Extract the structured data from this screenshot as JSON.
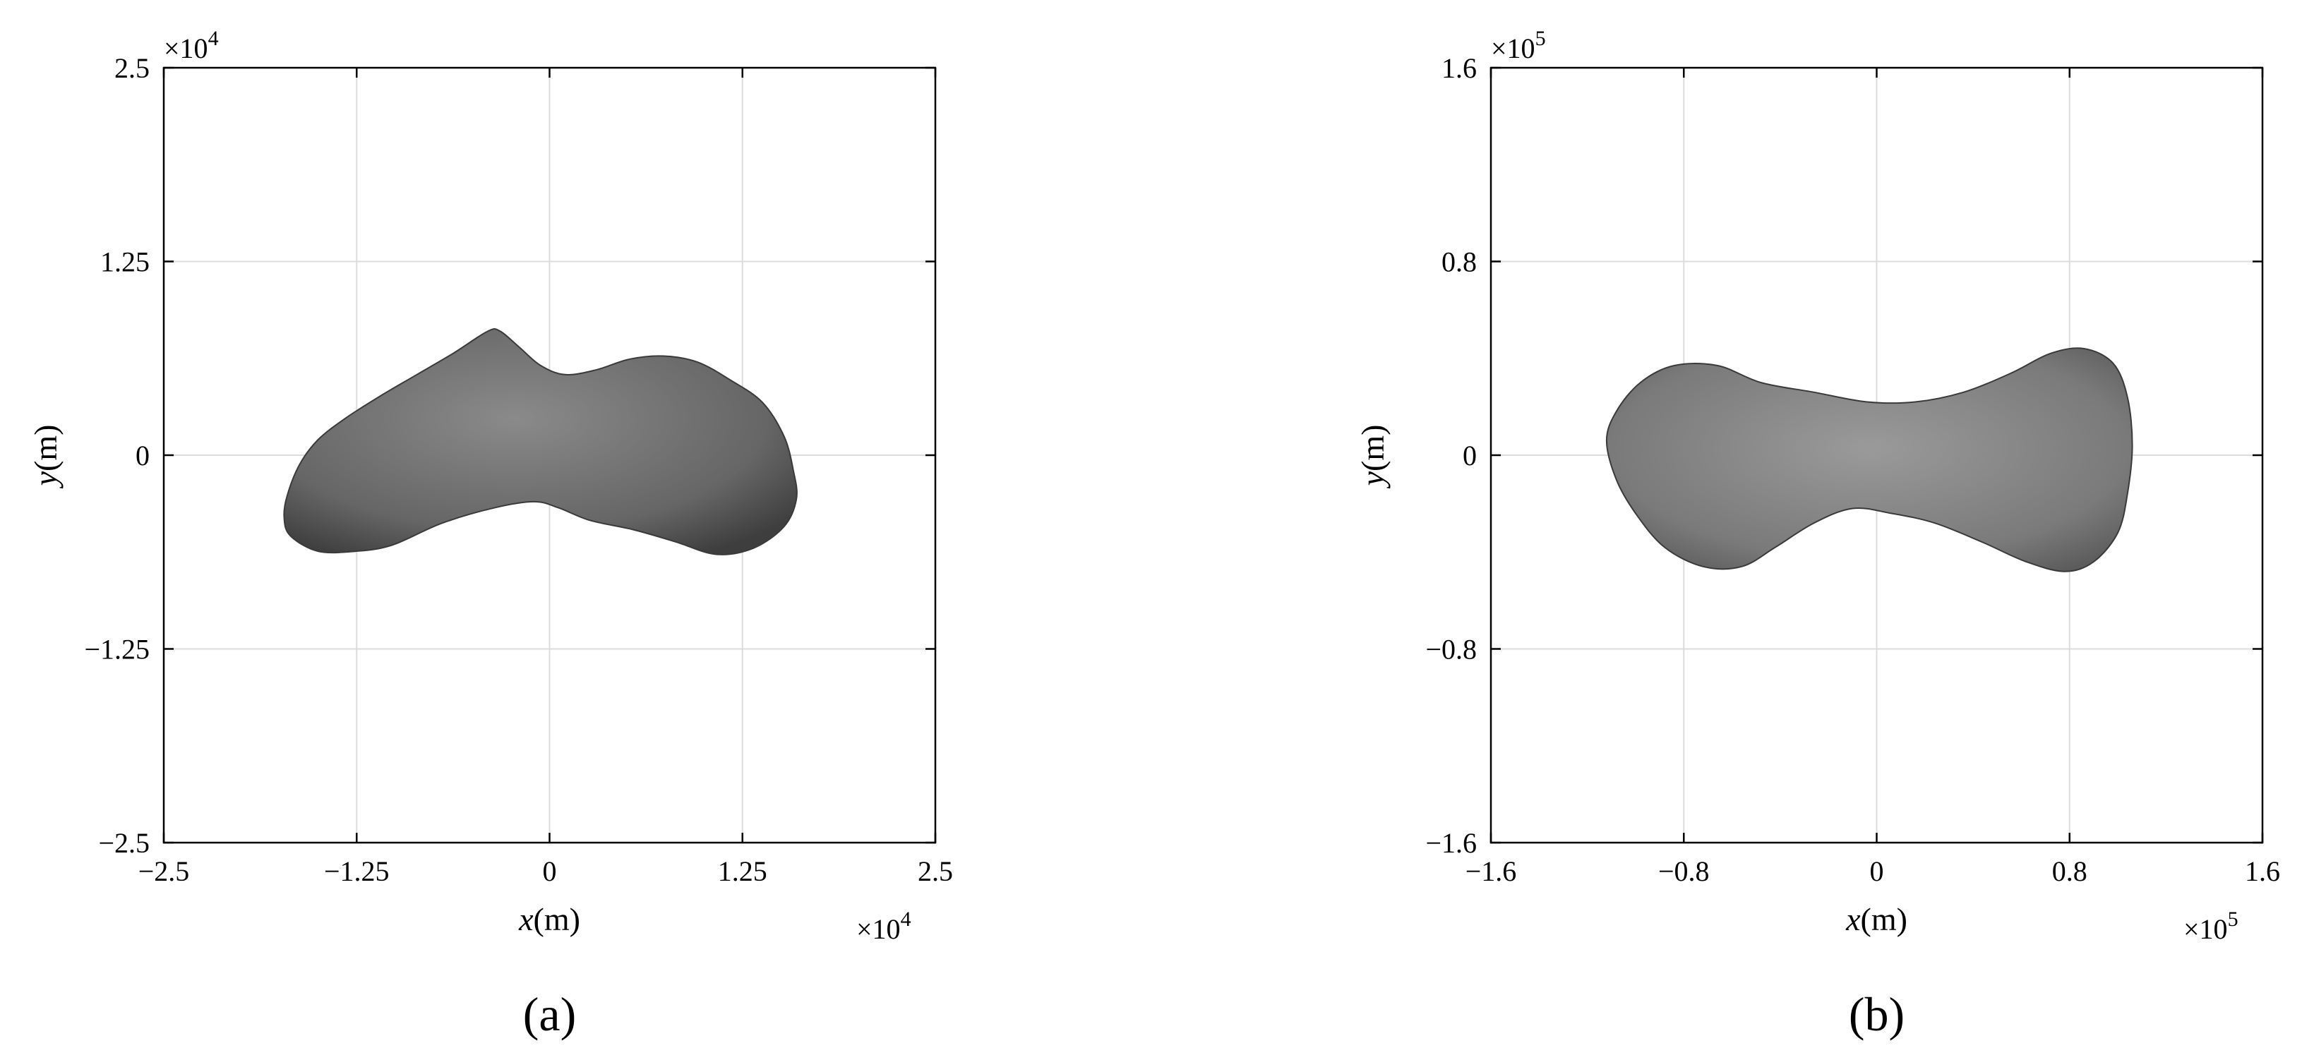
{
  "chart_data": [
    {
      "type": "scatter",
      "panel_label": "(a)",
      "xlabel_var": "x",
      "xlabel_unit": "(m)",
      "ylabel_var": "y",
      "ylabel_unit": "(m)",
      "xlim": [
        -2.5,
        2.5
      ],
      "ylim": [
        -2.5,
        2.5
      ],
      "x_ticks": [
        "−2.5",
        "−1.25",
        "0",
        "1.25",
        "2.5"
      ],
      "y_ticks": [
        "−2.5",
        "−1.25",
        "0",
        "1.25",
        "2.5"
      ],
      "x_tick_values": [
        -2.5,
        -1.25,
        0,
        1.25,
        2.5
      ],
      "y_tick_values": [
        -2.5,
        -1.25,
        0,
        1.25,
        2.5
      ],
      "x_multiplier": "×10",
      "x_multiplier_exp": "4",
      "y_multiplier": "×10",
      "y_multiplier_exp": "4",
      "grid": true,
      "shape_name": "asteroid-outline",
      "shape_outline": [
        [
          -1.68,
          -0.52
        ],
        [
          -1.72,
          -0.4
        ],
        [
          -1.7,
          -0.26
        ],
        [
          -1.62,
          -0.06
        ],
        [
          -1.5,
          0.1
        ],
        [
          -1.32,
          0.24
        ],
        [
          -1.1,
          0.38
        ],
        [
          -0.86,
          0.52
        ],
        [
          -0.62,
          0.66
        ],
        [
          -0.4,
          0.8
        ],
        [
          -0.32,
          0.8
        ],
        [
          -0.2,
          0.7
        ],
        [
          -0.06,
          0.58
        ],
        [
          0.1,
          0.52
        ],
        [
          0.3,
          0.55
        ],
        [
          0.52,
          0.62
        ],
        [
          0.74,
          0.64
        ],
        [
          0.96,
          0.6
        ],
        [
          1.18,
          0.48
        ],
        [
          1.38,
          0.34
        ],
        [
          1.52,
          0.12
        ],
        [
          1.58,
          -0.1
        ],
        [
          1.6,
          -0.28
        ],
        [
          1.52,
          -0.46
        ],
        [
          1.32,
          -0.6
        ],
        [
          1.08,
          -0.64
        ],
        [
          0.82,
          -0.56
        ],
        [
          0.54,
          -0.48
        ],
        [
          0.26,
          -0.42
        ],
        [
          0.06,
          -0.34
        ],
        [
          -0.1,
          -0.3
        ],
        [
          -0.36,
          -0.34
        ],
        [
          -0.7,
          -0.44
        ],
        [
          -1.02,
          -0.58
        ],
        [
          -1.26,
          -0.62
        ],
        [
          -1.5,
          -0.62
        ]
      ],
      "shape_color": "#6e6e6e"
    },
    {
      "type": "scatter",
      "panel_label": "(b)",
      "xlabel_var": "x",
      "xlabel_unit": "(m)",
      "ylabel_var": "y",
      "ylabel_unit": "(m)",
      "xlim": [
        -1.6,
        1.6
      ],
      "ylim": [
        -1.6,
        1.6
      ],
      "x_ticks": [
        "−1.6",
        "−0.8",
        "0",
        "0.8",
        "1.6"
      ],
      "y_ticks": [
        "−1.6",
        "−0.8",
        "0",
        "0.8",
        "1.6"
      ],
      "x_tick_values": [
        -1.6,
        -0.8,
        0,
        0.8,
        1.6
      ],
      "y_tick_values": [
        -1.6,
        -0.8,
        0,
        0.8,
        1.6
      ],
      "x_multiplier": "×10",
      "x_multiplier_exp": "5",
      "y_multiplier": "×10",
      "y_multiplier_exp": "5",
      "grid": true,
      "shape_name": "asteroid-outline",
      "shape_outline": [
        [
          -1.12,
          0.06
        ],
        [
          -1.08,
          0.18
        ],
        [
          -0.98,
          0.3
        ],
        [
          -0.84,
          0.37
        ],
        [
          -0.66,
          0.37
        ],
        [
          -0.48,
          0.3
        ],
        [
          -0.26,
          0.26
        ],
        [
          -0.04,
          0.22
        ],
        [
          0.16,
          0.22
        ],
        [
          0.36,
          0.26
        ],
        [
          0.56,
          0.34
        ],
        [
          0.72,
          0.42
        ],
        [
          0.86,
          0.44
        ],
        [
          0.98,
          0.38
        ],
        [
          1.04,
          0.24
        ],
        [
          1.06,
          0.04
        ],
        [
          1.04,
          -0.16
        ],
        [
          1.0,
          -0.32
        ],
        [
          0.9,
          -0.44
        ],
        [
          0.78,
          -0.48
        ],
        [
          0.62,
          -0.44
        ],
        [
          0.44,
          -0.36
        ],
        [
          0.24,
          -0.28
        ],
        [
          0.06,
          -0.24
        ],
        [
          -0.1,
          -0.22
        ],
        [
          -0.26,
          -0.28
        ],
        [
          -0.42,
          -0.38
        ],
        [
          -0.56,
          -0.46
        ],
        [
          -0.72,
          -0.46
        ],
        [
          -0.88,
          -0.38
        ],
        [
          -1.0,
          -0.24
        ],
        [
          -1.08,
          -0.1
        ]
      ],
      "shape_color": "#808080"
    }
  ]
}
